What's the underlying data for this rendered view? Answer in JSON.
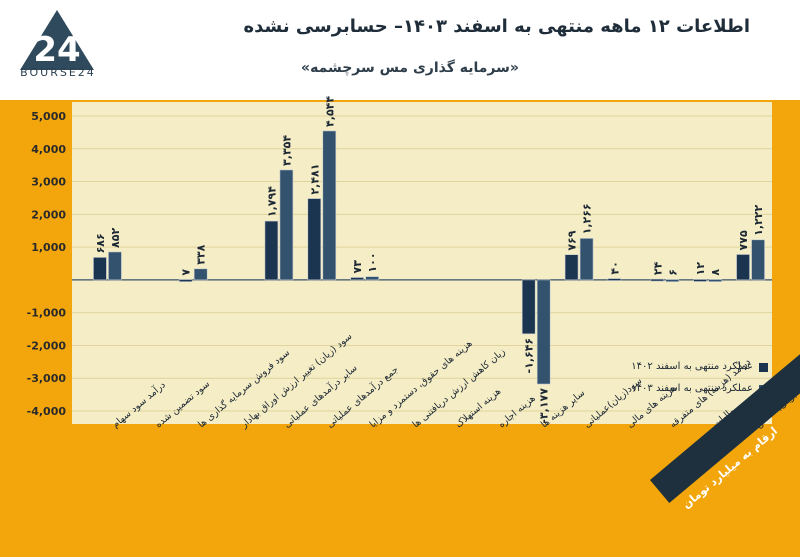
{
  "header": {
    "logo_text": "BOURSE24",
    "title": "اطلاعات ۱۲ ماهه منتهی به اسفند ۱۴۰۳– حسابرسی نشده",
    "subtitle": "«سرمایه گذاری مس سرچشمه»"
  },
  "unit_note": "ارقام به میلیارد تومان",
  "colors": {
    "background": "#f2a60c",
    "plot_area": "#f5edc6",
    "series_1402": "#1b3550",
    "series_1403": "#33526e"
  },
  "chart_data": {
    "type": "bar",
    "ylim": [
      -4000,
      5000
    ],
    "yticks": [
      "5,000",
      "4,000",
      "3,000",
      "2,000",
      "1,000",
      "-1,000",
      "-2,000",
      "-3,000",
      "-4,000"
    ],
    "grid": true,
    "legend_position": "lower-right",
    "categories": [
      "درآمد سود سهام",
      "سود تضمین شده",
      "سود فروش سرمایه گذاری ها",
      "سود (زیان) تغییر ارزش اوراق بهادار",
      "سایر درآمدهای عملیاتی",
      "جمع درآمدهای عملیاتی",
      "هزینه های حقوق، دستمزد و مزایا",
      "زیان کاهش ارزش دریافتنی ها",
      "هزینه استهلاک",
      "هزینه اجاره",
      "سایر هزینه ها",
      "سود(زیان)عملیاتی",
      "هزینه های مالی",
      "درآمد (هزینه) های متفرقه",
      "مالیات",
      "سود(زیان) خالص"
    ],
    "series": [
      {
        "name": "عملکرد منتهی به اسفند ۱۴۰۲",
        "values": [
          686,
          null,
          7,
          null,
          1794,
          2481,
          73,
          null,
          null,
          null,
          -1646,
          769,
          40,
          24,
          12,
          775
        ],
        "labels": [
          "۶۸۶",
          "",
          "۷",
          "",
          "۱,۷۹۴",
          "۲,۴۸۱",
          "۷۳",
          "",
          "",
          "",
          "-۱,۶۴۶",
          "۷۶۹",
          "۴۰",
          "۲۴",
          "۱۲",
          "۷۷۵"
        ]
      },
      {
        "name": "عملکرد منتهی به اسفند ۱۴۰۳",
        "values": [
          852,
          null,
          338,
          null,
          3354,
          4544,
          100,
          null,
          null,
          null,
          -3177,
          1266,
          null,
          6,
          8,
          1222
        ],
        "labels": [
          "۸۵۲",
          "",
          "۳۳۸",
          "",
          "۳,۳۵۴",
          "۴,۵۴۴",
          "۱۰۰",
          "",
          "",
          "",
          "-۳,۱۷۷",
          "۱,۲۶۶",
          "",
          "۶",
          "۸",
          "۱,۲۲۲"
        ]
      }
    ]
  }
}
